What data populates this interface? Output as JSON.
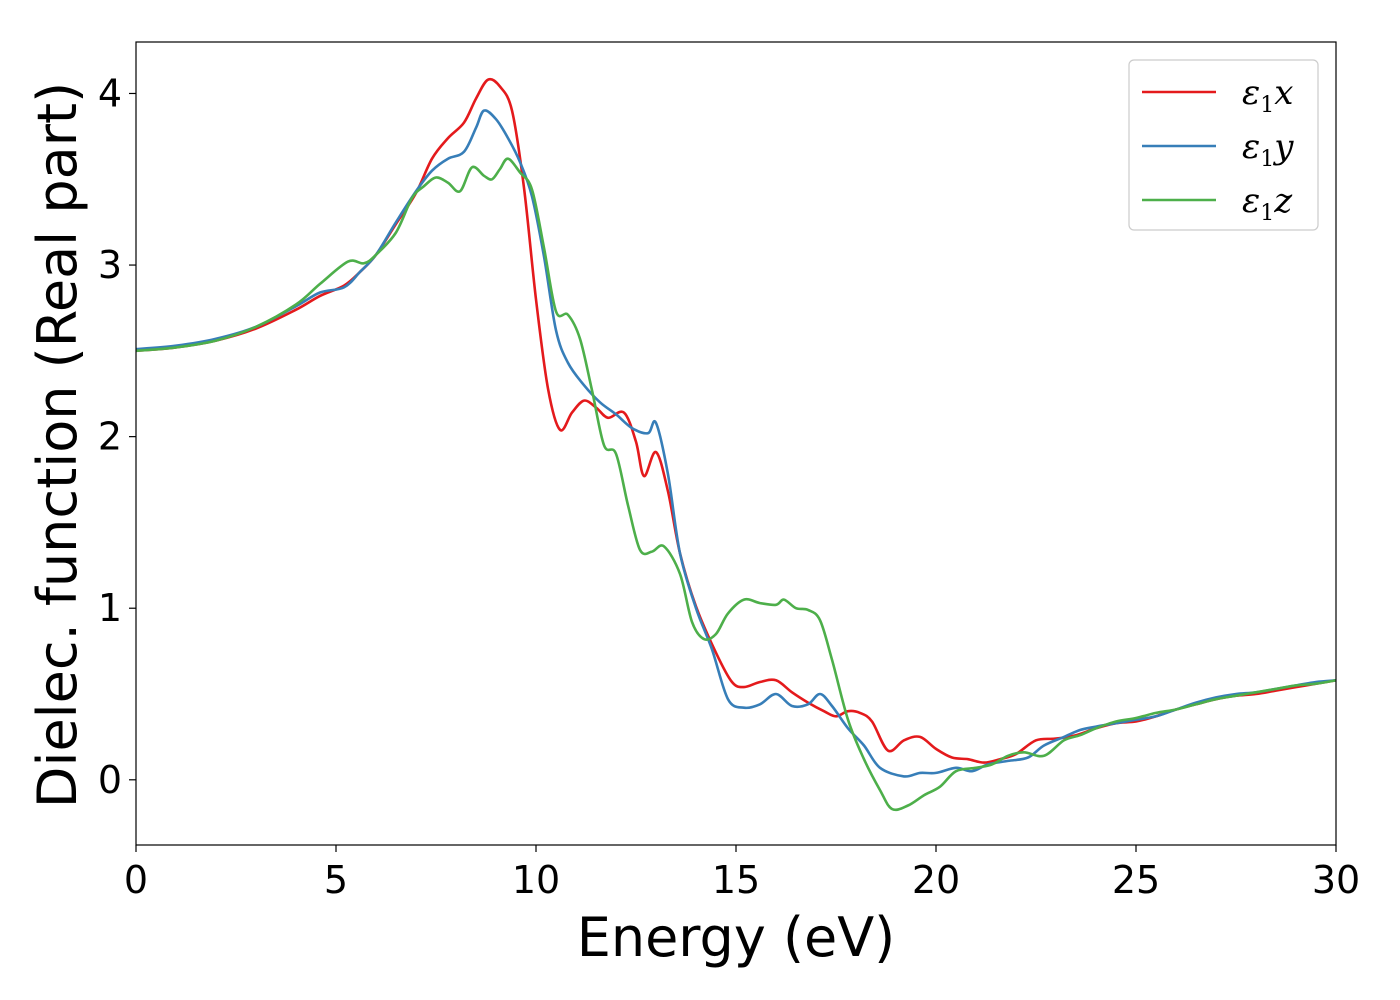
{
  "chart_data": {
    "type": "line",
    "title": "",
    "xlabel": "Energy (eV)",
    "ylabel": "Dielec. function (Real part)",
    "xlim": [
      0,
      30
    ],
    "ylim": [
      -0.38,
      4.3
    ],
    "xticks": [
      0,
      5,
      10,
      15,
      20,
      25,
      30
    ],
    "yticks": [
      0,
      1,
      2,
      3,
      4
    ],
    "grid": false,
    "legend_position": "top-right",
    "series": [
      {
        "name": "ε1x",
        "symbol": "ε",
        "sub": "1",
        "axis": "x",
        "color": "#e41a1c",
        "points": [
          [
            0,
            2.5
          ],
          [
            1,
            2.52
          ],
          [
            2,
            2.56
          ],
          [
            3,
            2.63
          ],
          [
            4,
            2.74
          ],
          [
            4.6,
            2.82
          ],
          [
            5.2,
            2.88
          ],
          [
            5.6,
            2.96
          ],
          [
            6,
            3.06
          ],
          [
            6.5,
            3.24
          ],
          [
            7,
            3.42
          ],
          [
            7.4,
            3.62
          ],
          [
            7.8,
            3.74
          ],
          [
            8.2,
            3.83
          ],
          [
            8.5,
            3.97
          ],
          [
            8.8,
            4.08
          ],
          [
            9.1,
            4.04
          ],
          [
            9.4,
            3.9
          ],
          [
            9.7,
            3.45
          ],
          [
            10,
            2.8
          ],
          [
            10.3,
            2.28
          ],
          [
            10.6,
            2.04
          ],
          [
            10.9,
            2.14
          ],
          [
            11.2,
            2.21
          ],
          [
            11.5,
            2.17
          ],
          [
            11.8,
            2.11
          ],
          [
            12.2,
            2.14
          ],
          [
            12.5,
            1.97
          ],
          [
            12.7,
            1.77
          ],
          [
            13,
            1.91
          ],
          [
            13.3,
            1.68
          ],
          [
            13.6,
            1.32
          ],
          [
            14,
            1.01
          ],
          [
            14.5,
            0.74
          ],
          [
            14.9,
            0.57
          ],
          [
            15.2,
            0.54
          ],
          [
            15.6,
            0.57
          ],
          [
            16,
            0.58
          ],
          [
            16.4,
            0.51
          ],
          [
            16.8,
            0.45
          ],
          [
            17.2,
            0.4
          ],
          [
            17.5,
            0.37
          ],
          [
            17.8,
            0.4
          ],
          [
            18.1,
            0.39
          ],
          [
            18.4,
            0.34
          ],
          [
            18.8,
            0.17
          ],
          [
            19.2,
            0.23
          ],
          [
            19.6,
            0.25
          ],
          [
            20,
            0.18
          ],
          [
            20.4,
            0.13
          ],
          [
            20.8,
            0.12
          ],
          [
            21.2,
            0.1
          ],
          [
            21.6,
            0.12
          ],
          [
            22,
            0.15
          ],
          [
            22.5,
            0.23
          ],
          [
            23,
            0.24
          ],
          [
            23.5,
            0.26
          ],
          [
            24,
            0.3
          ],
          [
            24.5,
            0.33
          ],
          [
            25,
            0.34
          ],
          [
            25.5,
            0.37
          ],
          [
            26,
            0.41
          ],
          [
            26.5,
            0.44
          ],
          [
            27,
            0.47
          ],
          [
            27.5,
            0.49
          ],
          [
            28,
            0.5
          ],
          [
            28.5,
            0.52
          ],
          [
            29,
            0.54
          ],
          [
            29.5,
            0.56
          ],
          [
            30,
            0.58
          ]
        ]
      },
      {
        "name": "ε1y",
        "symbol": "ε",
        "sub": "1",
        "axis": "y",
        "color": "#377eb8",
        "points": [
          [
            0,
            2.51
          ],
          [
            1,
            2.53
          ],
          [
            2,
            2.57
          ],
          [
            3,
            2.64
          ],
          [
            4,
            2.76
          ],
          [
            4.6,
            2.84
          ],
          [
            5.2,
            2.87
          ],
          [
            5.6,
            2.96
          ],
          [
            6,
            3.06
          ],
          [
            6.5,
            3.25
          ],
          [
            7,
            3.43
          ],
          [
            7.4,
            3.55
          ],
          [
            7.8,
            3.62
          ],
          [
            8.2,
            3.66
          ],
          [
            8.5,
            3.8
          ],
          [
            8.7,
            3.9
          ],
          [
            9,
            3.85
          ],
          [
            9.3,
            3.74
          ],
          [
            9.6,
            3.6
          ],
          [
            9.9,
            3.4
          ],
          [
            10.2,
            3.05
          ],
          [
            10.5,
            2.62
          ],
          [
            10.8,
            2.43
          ],
          [
            11.2,
            2.3
          ],
          [
            11.6,
            2.2
          ],
          [
            12,
            2.13
          ],
          [
            12.4,
            2.05
          ],
          [
            12.8,
            2.02
          ],
          [
            13,
            2.08
          ],
          [
            13.3,
            1.78
          ],
          [
            13.6,
            1.32
          ],
          [
            14,
            1.0
          ],
          [
            14.4,
            0.76
          ],
          [
            14.8,
            0.47
          ],
          [
            15.2,
            0.42
          ],
          [
            15.6,
            0.44
          ],
          [
            16,
            0.5
          ],
          [
            16.4,
            0.43
          ],
          [
            16.8,
            0.44
          ],
          [
            17.1,
            0.5
          ],
          [
            17.4,
            0.43
          ],
          [
            17.8,
            0.3
          ],
          [
            18.2,
            0.2
          ],
          [
            18.6,
            0.07
          ],
          [
            19.2,
            0.02
          ],
          [
            19.6,
            0.04
          ],
          [
            20,
            0.04
          ],
          [
            20.5,
            0.07
          ],
          [
            20.9,
            0.05
          ],
          [
            21.3,
            0.09
          ],
          [
            21.8,
            0.11
          ],
          [
            22.3,
            0.13
          ],
          [
            22.7,
            0.2
          ],
          [
            23.2,
            0.25
          ],
          [
            23.6,
            0.29
          ],
          [
            24,
            0.31
          ],
          [
            24.5,
            0.33
          ],
          [
            25,
            0.35
          ],
          [
            25.5,
            0.37
          ],
          [
            26,
            0.41
          ],
          [
            26.5,
            0.45
          ],
          [
            27,
            0.48
          ],
          [
            27.5,
            0.5
          ],
          [
            28,
            0.51
          ],
          [
            28.5,
            0.53
          ],
          [
            29,
            0.55
          ],
          [
            29.5,
            0.57
          ],
          [
            30,
            0.58
          ]
        ]
      },
      {
        "name": "ε1z",
        "symbol": "ε",
        "sub": "1",
        "axis": "z",
        "color": "#4daf4a",
        "points": [
          [
            0,
            2.5
          ],
          [
            1,
            2.52
          ],
          [
            2,
            2.56
          ],
          [
            3,
            2.64
          ],
          [
            4,
            2.77
          ],
          [
            4.6,
            2.89
          ],
          [
            5.3,
            3.02
          ],
          [
            5.7,
            3.01
          ],
          [
            6,
            3.06
          ],
          [
            6.5,
            3.19
          ],
          [
            6.9,
            3.39
          ],
          [
            7.2,
            3.46
          ],
          [
            7.5,
            3.51
          ],
          [
            7.8,
            3.48
          ],
          [
            8.1,
            3.43
          ],
          [
            8.4,
            3.57
          ],
          [
            8.7,
            3.52
          ],
          [
            8.9,
            3.5
          ],
          [
            9.1,
            3.56
          ],
          [
            9.3,
            3.62
          ],
          [
            9.6,
            3.54
          ],
          [
            9.9,
            3.44
          ],
          [
            10.2,
            3.1
          ],
          [
            10.5,
            2.73
          ],
          [
            10.8,
            2.71
          ],
          [
            11.1,
            2.57
          ],
          [
            11.4,
            2.27
          ],
          [
            11.7,
            1.95
          ],
          [
            12,
            1.9
          ],
          [
            12.3,
            1.6
          ],
          [
            12.6,
            1.34
          ],
          [
            12.9,
            1.33
          ],
          [
            13.2,
            1.36
          ],
          [
            13.6,
            1.2
          ],
          [
            13.9,
            0.92
          ],
          [
            14.2,
            0.82
          ],
          [
            14.5,
            0.85
          ],
          [
            14.8,
            0.97
          ],
          [
            15.2,
            1.05
          ],
          [
            15.6,
            1.03
          ],
          [
            16,
            1.02
          ],
          [
            16.2,
            1.05
          ],
          [
            16.5,
            1.0
          ],
          [
            16.8,
            0.99
          ],
          [
            17.1,
            0.93
          ],
          [
            17.4,
            0.7
          ],
          [
            17.8,
            0.35
          ],
          [
            18.2,
            0.12
          ],
          [
            18.6,
            -0.06
          ],
          [
            18.9,
            -0.17
          ],
          [
            19.3,
            -0.15
          ],
          [
            19.7,
            -0.09
          ],
          [
            20.1,
            -0.04
          ],
          [
            20.5,
            0.05
          ],
          [
            21,
            0.07
          ],
          [
            21.4,
            0.09
          ],
          [
            21.8,
            0.14
          ],
          [
            22.2,
            0.16
          ],
          [
            22.7,
            0.14
          ],
          [
            23.2,
            0.23
          ],
          [
            23.6,
            0.26
          ],
          [
            24,
            0.3
          ],
          [
            24.5,
            0.34
          ],
          [
            25,
            0.36
          ],
          [
            25.5,
            0.39
          ],
          [
            26,
            0.41
          ],
          [
            26.5,
            0.44
          ],
          [
            27,
            0.47
          ],
          [
            27.5,
            0.49
          ],
          [
            28,
            0.51
          ],
          [
            28.5,
            0.53
          ],
          [
            29,
            0.55
          ],
          [
            29.5,
            0.56
          ],
          [
            30,
            0.58
          ]
        ]
      }
    ]
  }
}
